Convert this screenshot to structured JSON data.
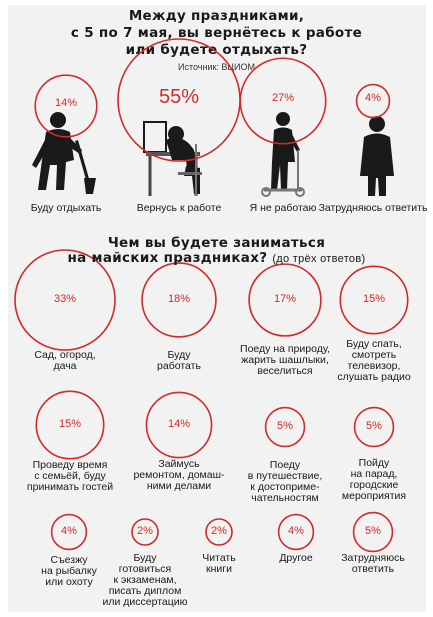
{
  "title": {
    "line1": "Между праздниками,",
    "line2": "с 5 по 7 мая, вы вернётесь к работе",
    "line3": "или будете отдыхать?",
    "source": "Источник: ВЦИОМ"
  },
  "section2": {
    "line1": "Чем вы будете заниматься",
    "line2": "на майских праздниках?",
    "note": "(до трёх ответов)"
  },
  "colors": {
    "accent": "#d32a2a",
    "figure": "#1a1a1a"
  },
  "icons": [
    "person-with-shovel-icon",
    "person-asleep-at-desk-icon",
    "person-with-scooter-icon",
    "standing-person-icon"
  ],
  "chart_data": [
    {
      "type": "bubble",
      "title": "Между праздниками, с 5 по 7 мая, вы вернётесь к работе или будете отдыхать?",
      "unit": "%",
      "categories": [
        "Буду отдыхать",
        "Вернусь к работе",
        "Я не работаю",
        "Затрудняюсь ответить"
      ],
      "values": [
        14,
        55,
        27,
        4
      ],
      "labels": [
        "14%",
        "55%",
        "27%",
        "4%"
      ]
    },
    {
      "type": "bubble",
      "title": "Чем вы будете заниматься на майских праздниках? (до трёх ответов)",
      "unit": "%",
      "categories": [
        [
          "Сад, огород,",
          "дача"
        ],
        [
          "Буду",
          "работать"
        ],
        [
          "Поеду на природу,",
          "жарить шашлыки,",
          "веселиться"
        ],
        [
          "Буду спать,",
          "смотреть",
          "телевизор,",
          "слушать радио"
        ],
        [
          "Проведу время",
          "с семьёй, буду",
          "принимать гостей"
        ],
        [
          "Займусь",
          "ремонтом, домаш-",
          "ними делами"
        ],
        [
          "Поеду",
          "в путешествие,",
          "к достоприме-",
          "чательностям"
        ],
        [
          "Пойду",
          "на парад,",
          "городские",
          "мероприятия"
        ],
        [
          "Съезжу",
          "на рыбалку",
          "или охоту"
        ],
        [
          "Буду",
          "готовиться",
          "к экзаменам,",
          "писать диплом",
          "или диссертацию"
        ],
        [
          "Читать",
          "книги"
        ],
        [
          "Другое"
        ],
        [
          "Затрудняюсь",
          "ответить"
        ]
      ],
      "values": [
        33,
        18,
        17,
        15,
        15,
        14,
        5,
        5,
        4,
        2,
        2,
        4,
        5
      ],
      "labels": [
        "33%",
        "18%",
        "17%",
        "15%",
        "15%",
        "14%",
        "5%",
        "5%",
        "4%",
        "2%",
        "2%",
        "4%",
        "5%"
      ]
    }
  ]
}
